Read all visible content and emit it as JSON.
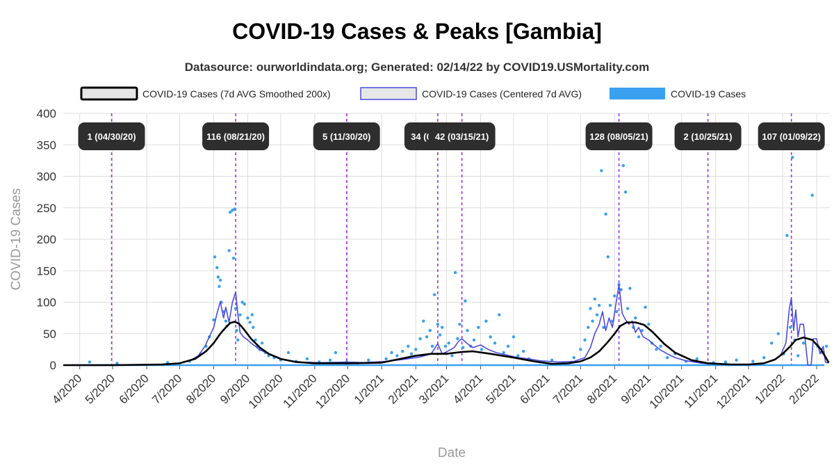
{
  "chart_data": {
    "type": "line",
    "title": "COVID-19 Cases & Peaks [Gambia]",
    "subtitle": "Datasource: ourworldindata.org; Generated: 02/14/22 by COVID19.USMortality.com",
    "xlabel": "Date",
    "ylabel": "COVID-19 Cases",
    "ylim": [
      0,
      400
    ],
    "yticks": [
      0,
      50,
      100,
      150,
      200,
      250,
      300,
      350,
      400
    ],
    "xlim": [
      "2020-03-17",
      "2022-02-13"
    ],
    "xticks": [
      {
        "date": "2020-04-01",
        "label": "4/2020"
      },
      {
        "date": "2020-05-01",
        "label": "5/2020"
      },
      {
        "date": "2020-06-01",
        "label": "6/2020"
      },
      {
        "date": "2020-07-01",
        "label": "7/2020"
      },
      {
        "date": "2020-08-01",
        "label": "8/2020"
      },
      {
        "date": "2020-09-01",
        "label": "9/2020"
      },
      {
        "date": "2020-10-01",
        "label": "10/2020"
      },
      {
        "date": "2020-11-01",
        "label": "11/2020"
      },
      {
        "date": "2020-12-01",
        "label": "12/2020"
      },
      {
        "date": "2021-01-01",
        "label": "1/2021"
      },
      {
        "date": "2021-02-01",
        "label": "2/2021"
      },
      {
        "date": "2021-03-01",
        "label": "3/2021"
      },
      {
        "date": "2021-04-01",
        "label": "4/2021"
      },
      {
        "date": "2021-05-01",
        "label": "5/2021"
      },
      {
        "date": "2021-06-01",
        "label": "6/2021"
      },
      {
        "date": "2021-07-01",
        "label": "7/2021"
      },
      {
        "date": "2021-08-01",
        "label": "8/2021"
      },
      {
        "date": "2021-09-01",
        "label": "9/2021"
      },
      {
        "date": "2021-10-01",
        "label": "10/2021"
      },
      {
        "date": "2021-11-01",
        "label": "11/2021"
      },
      {
        "date": "2021-12-01",
        "label": "12/2021"
      },
      {
        "date": "2022-01-01",
        "label": "1/2022"
      },
      {
        "date": "2022-02-01",
        "label": "2/2022"
      }
    ],
    "legend": {
      "position": "top",
      "entries": [
        {
          "label": "COVID-19 Cases (7d AVG Smoothed 200x)"
        },
        {
          "label": "COVID-19 Cases (Centered 7d AVG)"
        },
        {
          "label": "COVID-19 Cases"
        }
      ]
    },
    "colors": {
      "smoothed": "#000000",
      "centered": "#4a4ae0",
      "cases": "#3aa0f0",
      "peak_line": "#9b30e6",
      "peak_label_bg": "#2e2e2e",
      "grid": "#dddddd"
    },
    "peaks": [
      {
        "date": "2020-04-30",
        "value": 1,
        "label": "1 (04/30/20)"
      },
      {
        "date": "2020-08-21",
        "value": 116,
        "label": "116 (08/21/20)"
      },
      {
        "date": "2020-11-30",
        "value": 5,
        "label": "5 (11/30/20)"
      },
      {
        "date": "2021-02-21",
        "value": 34,
        "label": "34 (02/21/21)"
      },
      {
        "date": "2021-03-15",
        "value": 42,
        "label": "42 (03/15/21)"
      },
      {
        "date": "2021-08-05",
        "value": 128,
        "label": "128 (08/05/21)"
      },
      {
        "date": "2021-10-25",
        "value": 2,
        "label": "2 (10/25/21)"
      },
      {
        "date": "2022-01-09",
        "value": 107,
        "label": "107 (01/09/22)"
      }
    ],
    "series": [
      {
        "name": "COVID-19 Cases (7d AVG Smoothed 200x)",
        "x": [
          "2020-03-17",
          "2020-05-01",
          "2020-06-15",
          "2020-07-01",
          "2020-07-15",
          "2020-07-25",
          "2020-08-01",
          "2020-08-07",
          "2020-08-12",
          "2020-08-16",
          "2020-08-20",
          "2020-08-24",
          "2020-08-28",
          "2020-09-04",
          "2020-09-12",
          "2020-09-20",
          "2020-10-01",
          "2020-10-15",
          "2020-11-01",
          "2020-12-01",
          "2021-01-01",
          "2021-01-15",
          "2021-02-01",
          "2021-02-15",
          "2021-03-01",
          "2021-03-15",
          "2021-03-25",
          "2021-04-10",
          "2021-05-01",
          "2021-05-20",
          "2021-06-05",
          "2021-06-20",
          "2021-07-01",
          "2021-07-10",
          "2021-07-18",
          "2021-07-25",
          "2021-08-01",
          "2021-08-06",
          "2021-08-12",
          "2021-08-20",
          "2021-08-28",
          "2021-09-05",
          "2021-09-15",
          "2021-09-25",
          "2021-10-10",
          "2021-10-25",
          "2021-11-15",
          "2021-12-01",
          "2021-12-15",
          "2021-12-25",
          "2022-01-01",
          "2022-01-08",
          "2022-01-13",
          "2022-01-20",
          "2022-01-28",
          "2022-02-05",
          "2022-02-12"
        ],
        "y": [
          0,
          0,
          1,
          3,
          10,
          22,
          35,
          50,
          60,
          67,
          69,
          66,
          58,
          42,
          28,
          18,
          10,
          5,
          3,
          3,
          4,
          9,
          15,
          18,
          18,
          21,
          22,
          18,
          12,
          6,
          2,
          3,
          6,
          12,
          22,
          35,
          50,
          62,
          68,
          68,
          64,
          52,
          34,
          20,
          8,
          3,
          1,
          1,
          3,
          9,
          18,
          30,
          40,
          44,
          40,
          25,
          4
        ]
      },
      {
        "name": "COVID-19 Cases (Centered 7d AVG)",
        "x": [
          "2020-03-17",
          "2020-06-15",
          "2020-07-01",
          "2020-07-10",
          "2020-07-18",
          "2020-07-24",
          "2020-07-28",
          "2020-08-01",
          "2020-08-04",
          "2020-08-07",
          "2020-08-10",
          "2020-08-12",
          "2020-08-15",
          "2020-08-18",
          "2020-08-21",
          "2020-08-23",
          "2020-08-25",
          "2020-08-28",
          "2020-09-01",
          "2020-09-04",
          "2020-09-08",
          "2020-09-12",
          "2020-09-18",
          "2020-09-25",
          "2020-10-05",
          "2020-10-20",
          "2020-11-05",
          "2020-11-30",
          "2020-12-15",
          "2021-01-05",
          "2021-01-20",
          "2021-02-05",
          "2021-02-15",
          "2021-02-21",
          "2021-02-25",
          "2021-03-02",
          "2021-03-08",
          "2021-03-12",
          "2021-03-15",
          "2021-03-20",
          "2021-03-25",
          "2021-04-01",
          "2021-04-08",
          "2021-04-15",
          "2021-04-25",
          "2021-05-05",
          "2021-05-15",
          "2021-05-25",
          "2021-06-10",
          "2021-06-25",
          "2021-07-05",
          "2021-07-10",
          "2021-07-14",
          "2021-07-18",
          "2021-07-21",
          "2021-07-24",
          "2021-07-27",
          "2021-07-30",
          "2021-08-02",
          "2021-08-05",
          "2021-08-08",
          "2021-08-11",
          "2021-08-14",
          "2021-08-17",
          "2021-08-20",
          "2021-08-23",
          "2021-08-27",
          "2021-09-01",
          "2021-09-06",
          "2021-09-12",
          "2021-09-18",
          "2021-09-25",
          "2021-10-05",
          "2021-10-20",
          "2021-11-10",
          "2021-12-01",
          "2021-12-15",
          "2021-12-24",
          "2021-12-30",
          "2022-01-04",
          "2022-01-07",
          "2022-01-09",
          "2022-01-11",
          "2022-01-13",
          "2022-01-15",
          "2022-01-17",
          "2022-01-20",
          "2022-01-24",
          "2022-01-27",
          "2022-01-29",
          "2022-02-01",
          "2022-02-04",
          "2022-02-07",
          "2022-02-09",
          "2022-02-12"
        ],
        "y": [
          0,
          1,
          3,
          7,
          15,
          30,
          45,
          60,
          82,
          101,
          75,
          92,
          68,
          100,
          116,
          80,
          52,
          45,
          40,
          35,
          30,
          24,
          20,
          14,
          8,
          5,
          4,
          5,
          4,
          6,
          9,
          13,
          18,
          34,
          18,
          22,
          28,
          38,
          42,
          34,
          28,
          32,
          25,
          20,
          16,
          12,
          10,
          7,
          5,
          6,
          12,
          28,
          50,
          65,
          85,
          55,
          75,
          60,
          95,
          128,
          82,
          72,
          65,
          70,
          52,
          60,
          45,
          40,
          32,
          24,
          18,
          12,
          7,
          3,
          1,
          1,
          3,
          8,
          15,
          35,
          88,
          107,
          55,
          88,
          45,
          65,
          65,
          0,
          0,
          42,
          42,
          18,
          30,
          5,
          3
        ]
      },
      {
        "name": "COVID-19 Cases",
        "points": [
          [
            "2020-04-10",
            5
          ],
          [
            "2020-05-05",
            3
          ],
          [
            "2020-06-20",
            4
          ],
          [
            "2020-07-10",
            6
          ],
          [
            "2020-07-20",
            18
          ],
          [
            "2020-07-25",
            30
          ],
          [
            "2020-07-28",
            45
          ],
          [
            "2020-08-01",
            72
          ],
          [
            "2020-08-02",
            172
          ],
          [
            "2020-08-04",
            155
          ],
          [
            "2020-08-05",
            140
          ],
          [
            "2020-08-06",
            125
          ],
          [
            "2020-08-07",
            135
          ],
          [
            "2020-08-08",
            100
          ],
          [
            "2020-08-10",
            85
          ],
          [
            "2020-08-12",
            70
          ],
          [
            "2020-08-13",
            62
          ],
          [
            "2020-08-15",
            182
          ],
          [
            "2020-08-16",
            243
          ],
          [
            "2020-08-18",
            246
          ],
          [
            "2020-08-19",
            170
          ],
          [
            "2020-08-20",
            248
          ],
          [
            "2020-08-21",
            90
          ],
          [
            "2020-08-22",
            55
          ],
          [
            "2020-08-23",
            40
          ],
          [
            "2020-08-25",
            80
          ],
          [
            "2020-08-27",
            100
          ],
          [
            "2020-08-29",
            97
          ],
          [
            "2020-09-01",
            75
          ],
          [
            "2020-09-03",
            68
          ],
          [
            "2020-09-05",
            80
          ],
          [
            "2020-09-06",
            60
          ],
          [
            "2020-09-08",
            40
          ],
          [
            "2020-09-10",
            30
          ],
          [
            "2020-09-12",
            25
          ],
          [
            "2020-09-14",
            35
          ],
          [
            "2020-09-17",
            20
          ],
          [
            "2020-09-20",
            15
          ],
          [
            "2020-09-25",
            12
          ],
          [
            "2020-10-01",
            8
          ],
          [
            "2020-10-08",
            20
          ],
          [
            "2020-10-15",
            6
          ],
          [
            "2020-10-25",
            10
          ],
          [
            "2020-11-05",
            5
          ],
          [
            "2020-11-15",
            8
          ],
          [
            "2020-11-20",
            20
          ],
          [
            "2020-11-30",
            5
          ],
          [
            "2020-12-10",
            3
          ],
          [
            "2020-12-20",
            8
          ],
          [
            "2021-01-05",
            10
          ],
          [
            "2021-01-10",
            20
          ],
          [
            "2021-01-15",
            15
          ],
          [
            "2021-01-20",
            22
          ],
          [
            "2021-01-25",
            30
          ],
          [
            "2021-01-28",
            18
          ],
          [
            "2021-02-01",
            25
          ],
          [
            "2021-02-05",
            42
          ],
          [
            "2021-02-08",
            70
          ],
          [
            "2021-02-11",
            45
          ],
          [
            "2021-02-14",
            55
          ],
          [
            "2021-02-16",
            30
          ],
          [
            "2021-02-18",
            112
          ],
          [
            "2021-02-21",
            65
          ],
          [
            "2021-02-23",
            48
          ],
          [
            "2021-02-25",
            60
          ],
          [
            "2021-02-28",
            30
          ],
          [
            "2021-03-03",
            35
          ],
          [
            "2021-03-06",
            15
          ],
          [
            "2021-03-09",
            147
          ],
          [
            "2021-03-11",
            42
          ],
          [
            "2021-03-13",
            65
          ],
          [
            "2021-03-16",
            28
          ],
          [
            "2021-03-18",
            102
          ],
          [
            "2021-03-20",
            55
          ],
          [
            "2021-03-23",
            30
          ],
          [
            "2021-03-26",
            40
          ],
          [
            "2021-03-30",
            60
          ],
          [
            "2021-04-02",
            25
          ],
          [
            "2021-04-06",
            70
          ],
          [
            "2021-04-10",
            45
          ],
          [
            "2021-04-14",
            35
          ],
          [
            "2021-04-18",
            80
          ],
          [
            "2021-04-22",
            20
          ],
          [
            "2021-04-26",
            30
          ],
          [
            "2021-05-01",
            45
          ],
          [
            "2021-05-05",
            15
          ],
          [
            "2021-05-10",
            22
          ],
          [
            "2021-05-15",
            10
          ],
          [
            "2021-05-25",
            5
          ],
          [
            "2021-06-05",
            8
          ],
          [
            "2021-06-15",
            3
          ],
          [
            "2021-06-25",
            12
          ],
          [
            "2021-07-01",
            25
          ],
          [
            "2021-07-05",
            40
          ],
          [
            "2021-07-08",
            60
          ],
          [
            "2021-07-10",
            90
          ],
          [
            "2021-07-12",
            70
          ],
          [
            "2021-07-14",
            105
          ],
          [
            "2021-07-16",
            80
          ],
          [
            "2021-07-18",
            95
          ],
          [
            "2021-07-20",
            309
          ],
          [
            "2021-07-22",
            60
          ],
          [
            "2021-07-24",
            240
          ],
          [
            "2021-07-26",
            172
          ],
          [
            "2021-07-28",
            95
          ],
          [
            "2021-07-30",
            70
          ],
          [
            "2021-08-01",
            110
          ],
          [
            "2021-08-03",
            85
          ],
          [
            "2021-08-05",
            128
          ],
          [
            "2021-08-07",
            120
          ],
          [
            "2021-08-09",
            317
          ],
          [
            "2021-08-11",
            275
          ],
          [
            "2021-08-13",
            90
          ],
          [
            "2021-08-15",
            122
          ],
          [
            "2021-08-18",
            60
          ],
          [
            "2021-08-20",
            75
          ],
          [
            "2021-08-23",
            45
          ],
          [
            "2021-08-26",
            55
          ],
          [
            "2021-08-29",
            92
          ],
          [
            "2021-09-01",
            65
          ],
          [
            "2021-09-04",
            35
          ],
          [
            "2021-09-08",
            25
          ],
          [
            "2021-09-12",
            30
          ],
          [
            "2021-09-18",
            12
          ],
          [
            "2021-09-25",
            18
          ],
          [
            "2021-10-05",
            6
          ],
          [
            "2021-10-15",
            10
          ],
          [
            "2021-10-30",
            4
          ],
          [
            "2021-11-10",
            5
          ],
          [
            "2021-11-20",
            8
          ],
          [
            "2021-12-05",
            6
          ],
          [
            "2021-12-15",
            12
          ],
          [
            "2021-12-22",
            35
          ],
          [
            "2021-12-28",
            50
          ],
          [
            "2022-01-02",
            18
          ],
          [
            "2022-01-05",
            206
          ],
          [
            "2022-01-08",
            60
          ],
          [
            "2022-01-10",
            330
          ],
          [
            "2022-01-12",
            40
          ],
          [
            "2022-01-15",
            15
          ],
          [
            "2022-01-20",
            35
          ],
          [
            "2022-01-28",
            270
          ],
          [
            "2022-02-02",
            30
          ],
          [
            "2022-02-06",
            20
          ],
          [
            "2022-02-10",
            30
          ]
        ]
      }
    ]
  }
}
